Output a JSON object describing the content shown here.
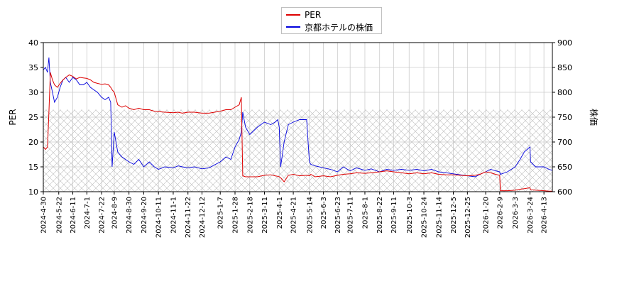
{
  "legend": {
    "per_label": "PER",
    "price_label": "京都ホテルの株価"
  },
  "colors": {
    "per": "#dd0000",
    "price": "#0000dd",
    "grid": "#cccccc",
    "hatch": "#bbbbbb"
  },
  "chart_data": {
    "type": "line",
    "ylabel_left": "PER",
    "ylabel_right": "株価",
    "ylim_left": [
      10,
      40
    ],
    "ylim_right": [
      600,
      900
    ],
    "yticks_left": [
      "10",
      "15",
      "20",
      "25",
      "30",
      "35",
      "40"
    ],
    "yticks_right": [
      "600",
      "650",
      "700",
      "750",
      "800",
      "850",
      "900"
    ],
    "x_range": [
      "2024-04-30",
      "2026-04-25"
    ],
    "hatched_band_per": [
      10,
      26.5
    ],
    "xticks": [
      "2024-4-30",
      "2024-5-22",
      "2024-6-11",
      "2024-7-1",
      "2024-7-22",
      "2024-8-9",
      "2024-8-30",
      "2024-9-20",
      "2024-10-11",
      "2024-11-1",
      "2024-11-22",
      "2024-12-12",
      "2025-1-7",
      "2025-1-28",
      "2025-2-18",
      "2025-3-11",
      "2025-4-1",
      "2025-4-21",
      "2025-5-14",
      "2025-6-3",
      "2025-6-23",
      "2025-7-11",
      "2025-8-1",
      "2025-8-22",
      "2025-9-11",
      "2025-10-3",
      "2025-10-24",
      "2025-11-14",
      "2025-12-5",
      "2025-12-25",
      "2026-1-20",
      "2026-2-9",
      "2026-3-3",
      "2026-3-24",
      "2026-4-13"
    ],
    "grid": true,
    "legend_position": "top-center",
    "series": [
      {
        "name": "PER",
        "axis": "left",
        "x": [
          "2024-04-30",
          "2024-05-03",
          "2024-05-06",
          "2024-05-08",
          "2024-05-10",
          "2024-05-13",
          "2024-05-16",
          "2024-05-20",
          "2024-05-24",
          "2024-05-28",
          "2024-06-01",
          "2024-06-06",
          "2024-06-11",
          "2024-06-16",
          "2024-06-21",
          "2024-06-26",
          "2024-07-01",
          "2024-07-06",
          "2024-07-11",
          "2024-07-16",
          "2024-07-22",
          "2024-07-27",
          "2024-08-01",
          "2024-08-04",
          "2024-08-06",
          "2024-08-09",
          "2024-08-14",
          "2024-08-20",
          "2024-08-25",
          "2024-08-30",
          "2024-09-06",
          "2024-09-13",
          "2024-09-20",
          "2024-09-28",
          "2024-10-05",
          "2024-10-11",
          "2024-10-20",
          "2024-11-01",
          "2024-11-08",
          "2024-11-14",
          "2024-11-22",
          "2024-12-01",
          "2024-12-12",
          "2024-12-22",
          "2025-01-07",
          "2025-01-15",
          "2025-01-22",
          "2025-01-28",
          "2025-02-03",
          "2025-02-06",
          "2025-02-08",
          "2025-02-12",
          "2025-02-18",
          "2025-03-01",
          "2025-03-11",
          "2025-03-20",
          "2025-03-26",
          "2025-03-30",
          "2025-04-01",
          "2025-04-03",
          "2025-04-08",
          "2025-04-14",
          "2025-04-21",
          "2025-04-30",
          "2025-05-10",
          "2025-05-14",
          "2025-05-16",
          "2025-05-22",
          "2025-06-03",
          "2025-06-13",
          "2025-06-23",
          "2025-07-01",
          "2025-07-11",
          "2025-07-20",
          "2025-08-01",
          "2025-08-10",
          "2025-08-22",
          "2025-09-01",
          "2025-09-11",
          "2025-09-22",
          "2025-10-03",
          "2025-10-14",
          "2025-10-24",
          "2025-11-04",
          "2025-11-14",
          "2025-11-25",
          "2025-12-05",
          "2025-12-15",
          "2025-12-25",
          "2026-01-05",
          "2026-01-12",
          "2026-01-20",
          "2026-01-27",
          "2026-02-03",
          "2026-02-09",
          "2026-02-10",
          "2026-02-20",
          "2026-03-03",
          "2026-03-10",
          "2026-03-16",
          "2026-03-24",
          "2026-03-25",
          "2026-04-01",
          "2026-04-13",
          "2026-04-20",
          "2026-04-25"
        ],
        "y": [
          19,
          18.5,
          19,
          26,
          34,
          32.5,
          31.5,
          31,
          31.8,
          32.5,
          33,
          33.5,
          33.2,
          32.7,
          33,
          32.9,
          32.8,
          32.5,
          32,
          31.8,
          31.6,
          31.7,
          31.5,
          31,
          30.5,
          30,
          27.5,
          27,
          27.3,
          26.8,
          26.5,
          26.8,
          26.5,
          26.5,
          26.2,
          26.1,
          26,
          25.9,
          26,
          25.8,
          26,
          26,
          25.8,
          25.8,
          26.2,
          26.5,
          26.5,
          27,
          27.5,
          29,
          13.2,
          13,
          13,
          13,
          13.3,
          13.4,
          13.2,
          13.1,
          13,
          12.8,
          12,
          13.3,
          13.5,
          13.2,
          13.3,
          13.2,
          13.5,
          13,
          13.2,
          13,
          13.3,
          13.5,
          13.6,
          13.8,
          13.7,
          13.8,
          14,
          14.2,
          14,
          13.8,
          13.6,
          13.8,
          13.6,
          13.8,
          13.5,
          13.4,
          13.4,
          13.3,
          13.2,
          13.3,
          13.5,
          14,
          13.8,
          13.5,
          13.3,
          10.2,
          10.2,
          10.3,
          10.5,
          10.6,
          10.8,
          10.4,
          10.3,
          10.2,
          10.1,
          10.1
        ]
      },
      {
        "name": "京都ホテルの株価",
        "axis": "right",
        "x": [
          "2024-04-30",
          "2024-05-03",
          "2024-05-06",
          "2024-05-08",
          "2024-05-10",
          "2024-05-13",
          "2024-05-16",
          "2024-05-20",
          "2024-05-24",
          "2024-05-28",
          "2024-06-01",
          "2024-06-06",
          "2024-06-11",
          "2024-06-16",
          "2024-06-21",
          "2024-06-26",
          "2024-07-01",
          "2024-07-06",
          "2024-07-11",
          "2024-07-16",
          "2024-07-22",
          "2024-07-27",
          "2024-08-01",
          "2024-08-04",
          "2024-08-06",
          "2024-08-09",
          "2024-08-14",
          "2024-08-20",
          "2024-08-25",
          "2024-08-30",
          "2024-09-06",
          "2024-09-13",
          "2024-09-20",
          "2024-09-28",
          "2024-10-05",
          "2024-10-11",
          "2024-10-20",
          "2024-11-01",
          "2024-11-08",
          "2024-11-14",
          "2024-11-22",
          "2024-12-01",
          "2024-12-12",
          "2024-12-22",
          "2025-01-07",
          "2025-01-15",
          "2025-01-22",
          "2025-01-28",
          "2025-02-03",
          "2025-02-06",
          "2025-02-08",
          "2025-02-12",
          "2025-02-18",
          "2025-03-01",
          "2025-03-11",
          "2025-03-20",
          "2025-03-26",
          "2025-03-30",
          "2025-04-01",
          "2025-04-03",
          "2025-04-08",
          "2025-04-14",
          "2025-04-21",
          "2025-04-30",
          "2025-05-10",
          "2025-05-14",
          "2025-05-16",
          "2025-05-22",
          "2025-06-03",
          "2025-06-13",
          "2025-06-23",
          "2025-07-01",
          "2025-07-11",
          "2025-07-20",
          "2025-08-01",
          "2025-08-10",
          "2025-08-22",
          "2025-09-01",
          "2025-09-11",
          "2025-09-22",
          "2025-10-03",
          "2025-10-14",
          "2025-10-24",
          "2025-11-04",
          "2025-11-14",
          "2025-11-25",
          "2025-12-05",
          "2025-12-15",
          "2025-12-25",
          "2026-01-05",
          "2026-01-12",
          "2026-01-20",
          "2026-01-27",
          "2026-02-03",
          "2026-02-09",
          "2026-02-10",
          "2026-02-20",
          "2026-03-03",
          "2026-03-10",
          "2026-03-16",
          "2026-03-24",
          "2026-03-25",
          "2026-04-01",
          "2026-04-13",
          "2026-04-20",
          "2026-04-25"
        ],
        "y": [
          845,
          850,
          840,
          870,
          820,
          800,
          780,
          790,
          810,
          825,
          830,
          820,
          830,
          825,
          815,
          815,
          820,
          810,
          805,
          800,
          790,
          785,
          790,
          780,
          650,
          720,
          680,
          670,
          665,
          660,
          655,
          665,
          650,
          660,
          650,
          645,
          650,
          648,
          652,
          650,
          648,
          650,
          646,
          648,
          660,
          670,
          665,
          690,
          705,
          720,
          760,
          730,
          715,
          730,
          740,
          735,
          740,
          745,
          730,
          650,
          700,
          735,
          740,
          745,
          745,
          660,
          655,
          652,
          648,
          645,
          640,
          650,
          642,
          648,
          643,
          646,
          640,
          645,
          643,
          645,
          643,
          645,
          642,
          645,
          640,
          638,
          636,
          634,
          632,
          630,
          635,
          640,
          645,
          642,
          640,
          635,
          640,
          650,
          665,
          680,
          690,
          660,
          650,
          650,
          645,
          643
        ]
      }
    ]
  }
}
